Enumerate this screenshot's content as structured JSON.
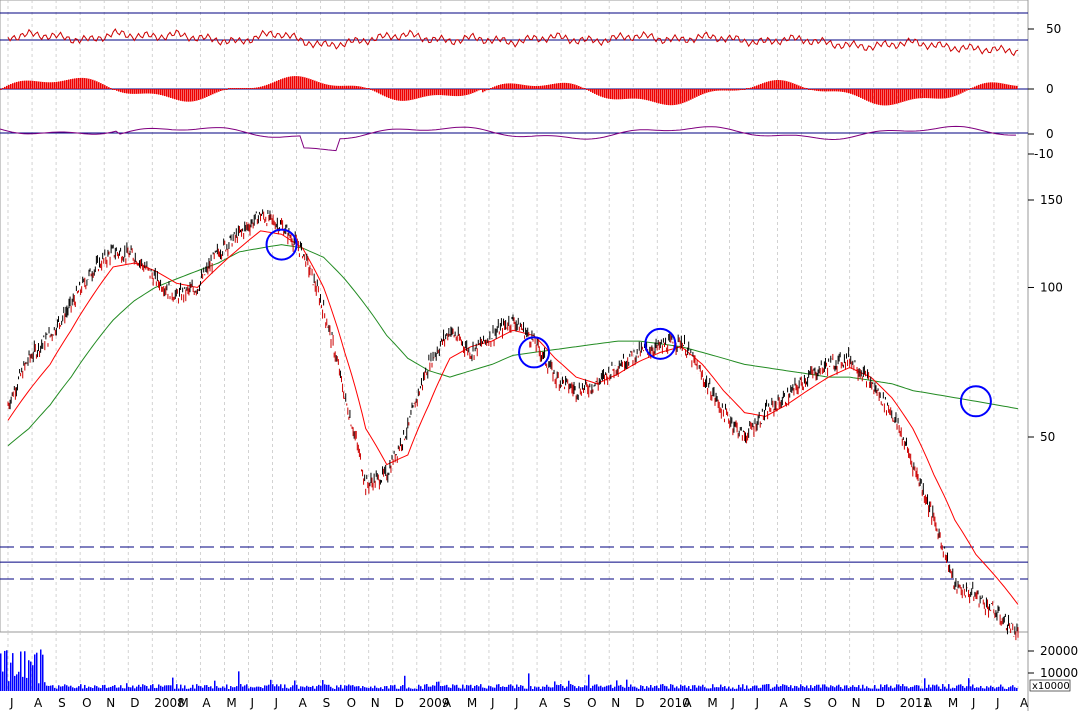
{
  "chart_data": {
    "type": "line",
    "colors": {
      "price": "#000000",
      "price_down": "#cc0000",
      "ma_short": "#ff0000",
      "ma_long": "#228b22",
      "oscillator": "#cc0000",
      "macd": "#800080",
      "volume": "#0000ff",
      "signal_circle": "#0000ff",
      "reference_line": "#000080"
    },
    "y_axis": {
      "scale": "log",
      "tick_labels": [
        "150",
        "100",
        "50"
      ],
      "tick_values": [
        150,
        100,
        50
      ]
    },
    "x_axis": {
      "labels": [
        "J",
        "A",
        "S",
        "O",
        "N",
        "D",
        "2008",
        "M",
        "A",
        "M",
        "J",
        "J",
        "A",
        "S",
        "O",
        "N",
        "D",
        "2009",
        "A",
        "M",
        "J",
        "J",
        "A",
        "S",
        "O",
        "N",
        "D",
        "2010",
        "A",
        "M",
        "J",
        "J",
        "A",
        "S",
        "O",
        "N",
        "D",
        "2011",
        "A",
        "M",
        "J",
        "J",
        "A"
      ]
    },
    "price_series": {
      "name": "",
      "x_index": [
        0,
        1,
        2,
        3,
        4,
        5,
        6,
        7,
        8,
        9,
        10,
        11,
        12,
        13,
        14,
        15,
        16,
        17,
        18,
        19,
        20,
        21,
        22,
        23,
        24,
        25,
        26,
        27,
        28,
        29,
        30,
        31,
        32,
        33,
        34,
        35,
        36,
        37,
        38,
        39,
        40,
        41,
        42,
        43,
        44,
        45,
        46,
        47,
        48
      ],
      "values": [
        58,
        72,
        80,
        92,
        108,
        118,
        116,
        104,
        96,
        100,
        118,
        128,
        140,
        133,
        118,
        90,
        60,
        40,
        42,
        52,
        70,
        82,
        74,
        80,
        86,
        78,
        66,
        62,
        64,
        70,
        74,
        76,
        78,
        66,
        56,
        50,
        56,
        60,
        66,
        70,
        72,
        64,
        56,
        44,
        34,
        25,
        24,
        22,
        20
      ]
    },
    "ma_short": {
      "name": "",
      "values": [
        54,
        62,
        70,
        82,
        96,
        110,
        112,
        108,
        102,
        100,
        110,
        120,
        130,
        128,
        120,
        100,
        74,
        52,
        44,
        46,
        58,
        72,
        76,
        78,
        82,
        80,
        72,
        66,
        64,
        67,
        71,
        74,
        76,
        70,
        62,
        56,
        55,
        58,
        62,
        66,
        69,
        66,
        60,
        52,
        42,
        34,
        29,
        26,
        23
      ]
    },
    "ma_long": {
      "name": "",
      "values": [
        48,
        52,
        58,
        66,
        76,
        86,
        94,
        100,
        104,
        108,
        112,
        118,
        120,
        122,
        120,
        115,
        104,
        92,
        80,
        72,
        68,
        66,
        68,
        70,
        73,
        74,
        75,
        76,
        77,
        78,
        78,
        77,
        76,
        74,
        72,
        70,
        69,
        68,
        67,
        66,
        66,
        65,
        64,
        62,
        61,
        60,
        59,
        58,
        57
      ]
    },
    "upper_panel": {
      "tick_labels": [
        "50",
        "0",
        "0",
        "-10"
      ],
      "oscillator_values": [
        55,
        60,
        58,
        52,
        50,
        62,
        58,
        56,
        60,
        54,
        50,
        46,
        58,
        62,
        48,
        40,
        44,
        50,
        56,
        60,
        52,
        48,
        54,
        50,
        46,
        52,
        56,
        50,
        48,
        54,
        58,
        52,
        50,
        56,
        54,
        48,
        46,
        52,
        50,
        44,
        40,
        38,
        42,
        46,
        40,
        36,
        34,
        32,
        30
      ]
    },
    "volume_panel": {
      "tick_labels": [
        "20000",
        "10000"
      ],
      "unit_label": "x10000"
    },
    "reference_levels": {
      "solid": 28,
      "dashed_upper": 22.5,
      "dashed_lower": 19.5
    },
    "signal_markers_x_index": [
      13,
      25,
      31,
      46
    ]
  }
}
